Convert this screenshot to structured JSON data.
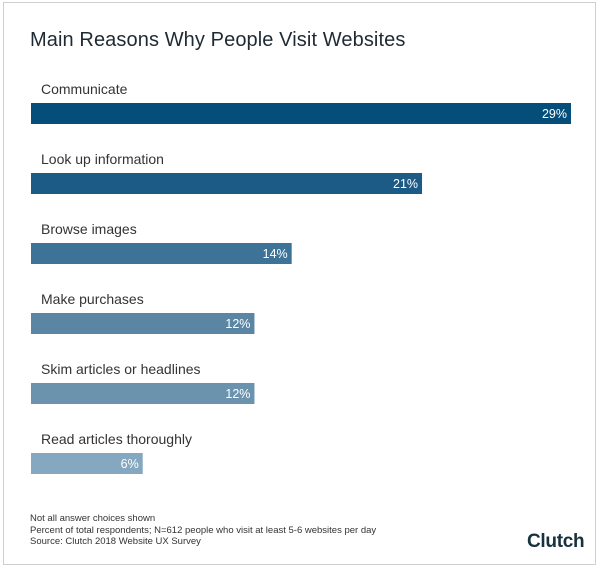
{
  "chart_data": {
    "type": "bar",
    "orientation": "horizontal",
    "title": "Main Reasons Why People Visit Websites",
    "categories": [
      "Communicate",
      "Look up information",
      "Browse images",
      "Make purchases",
      "Skim articles or headlines",
      "Read articles thoroughly"
    ],
    "values": [
      29,
      21,
      14,
      12,
      12,
      6
    ],
    "value_labels": [
      "29%",
      "21%",
      "14%",
      "12%",
      "12%",
      "6%"
    ],
    "bar_colors": [
      "#054e7a",
      "#1c5b85",
      "#3d7397",
      "#5a86a4",
      "#6b93ae",
      "#85a8c0"
    ],
    "xlim": [
      0,
      29
    ],
    "grid": false,
    "legend": "none"
  },
  "footer": {
    "note1": "Not all answer choices shown",
    "note2": "Percent of total respondents; N=612 people who visit at least 5-6 websites per day",
    "note3": "Source: Clutch 2018 Website UX Survey"
  },
  "brand": "Clutch"
}
